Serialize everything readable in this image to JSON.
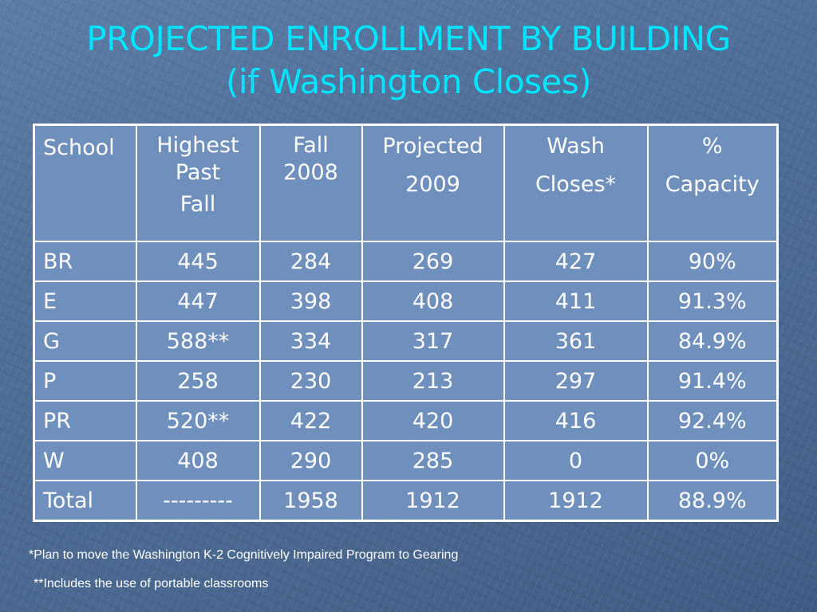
{
  "slide": {
    "title_line1": "PROJECTED ENROLLMENT BY BUILDING",
    "title_line2": "(if Washington Closes)"
  },
  "table": {
    "headers": [
      [
        "School"
      ],
      [
        "Highest Past",
        "Fall"
      ],
      [
        "Fall 2008"
      ],
      [
        "Projected",
        "2009"
      ],
      [
        "Wash",
        "Closes*"
      ],
      [
        "%",
        "Capacity"
      ]
    ],
    "rows": [
      [
        "BR",
        "445",
        "284",
        "269",
        "427",
        "90%"
      ],
      [
        "E",
        "447",
        "398",
        "408",
        "411",
        "91.3%"
      ],
      [
        "G",
        "588**",
        "334",
        "317",
        "361",
        "84.9%"
      ],
      [
        "P",
        "258",
        "230",
        "213",
        "297",
        "91.4%"
      ],
      [
        "PR",
        "520**",
        "422",
        "420",
        "416",
        "92.4%"
      ],
      [
        "W",
        "408",
        "290",
        "285",
        "0",
        "0%"
      ],
      [
        "Total",
        "---------",
        "1958",
        "1912",
        "1912",
        "88.9%"
      ]
    ]
  },
  "footnotes": {
    "note1": "*Plan to move the Washington K-2 Cognitively Impaired Program to Gearing",
    "note2": "**Includes the use of portable classrooms"
  },
  "colors": {
    "background": "#4f6f99",
    "title": "#00e5ff",
    "table_fill": "#6f8fbd",
    "text": "#ffffff"
  }
}
